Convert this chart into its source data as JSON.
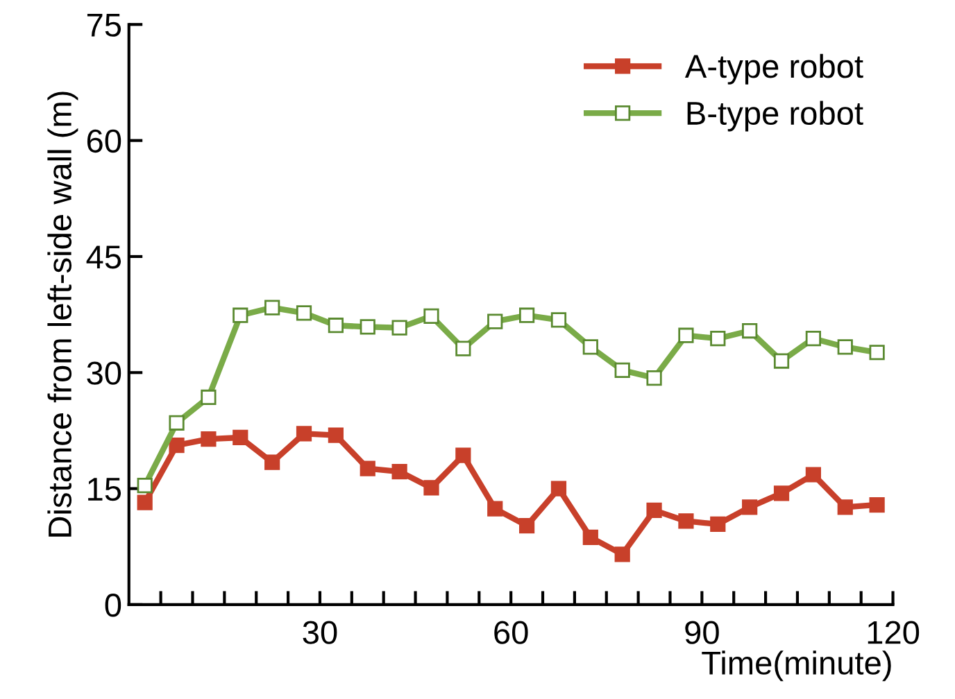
{
  "chart_data": {
    "type": "line",
    "xlabel": "Time(minute)",
    "ylabel": "Distance from left-side wall (m)",
    "x": [
      2.5,
      7.5,
      12.5,
      17.5,
      22.5,
      27.5,
      32.5,
      37.5,
      42.5,
      47.5,
      52.5,
      57.5,
      62.5,
      67.5,
      72.5,
      77.5,
      82.5,
      87.5,
      92.5,
      97.5,
      102.5,
      107.5,
      112.5,
      117.5
    ],
    "series": [
      {
        "name": "A-type robot",
        "color": "#c8402a",
        "marker": "square",
        "values": [
          13.2,
          20.6,
          21.4,
          21.6,
          18.4,
          22.1,
          21.9,
          17.6,
          17.2,
          15.1,
          19.3,
          12.4,
          10.2,
          15.0,
          8.7,
          6.5,
          12.2,
          10.8,
          10.4,
          12.6,
          14.4,
          16.8,
          12.6,
          12.9
        ]
      },
      {
        "name": "B-type robot",
        "color": "#7aab48",
        "marker": "square",
        "values": [
          15.4,
          23.5,
          26.8,
          37.4,
          38.4,
          37.7,
          36.1,
          35.9,
          35.8,
          37.3,
          33.1,
          36.6,
          37.4,
          36.8,
          33.3,
          30.3,
          29.3,
          34.8,
          34.4,
          35.4,
          31.5,
          34.4,
          33.3,
          32.6
        ]
      }
    ],
    "xlim": [
      0,
      120
    ],
    "ylim": [
      0,
      75
    ],
    "xticks": [
      {
        "value": 5,
        "label": null
      },
      {
        "value": 10,
        "label": null
      },
      {
        "value": 15,
        "label": null
      },
      {
        "value": 20,
        "label": null
      },
      {
        "value": 25,
        "label": null
      },
      30,
      {
        "value": 35,
        "label": null
      },
      {
        "value": 40,
        "label": null
      },
      {
        "value": 45,
        "label": null
      },
      {
        "value": 50,
        "label": null
      },
      {
        "value": 55,
        "label": null
      },
      60,
      {
        "value": 65,
        "label": null
      },
      {
        "value": 70,
        "label": null
      },
      {
        "value": 75,
        "label": null
      },
      {
        "value": 80,
        "label": null
      },
      {
        "value": 85,
        "label": null
      },
      90,
      {
        "value": 95,
        "label": null
      },
      {
        "value": 100,
        "label": null
      },
      {
        "value": 105,
        "label": null
      },
      {
        "value": 110,
        "label": null
      },
      {
        "value": 115,
        "label": null
      },
      120
    ],
    "yticks": [
      0,
      15,
      30,
      45,
      60,
      75
    ],
    "grid": false,
    "legend": "top right",
    "line_style": "solid"
  }
}
